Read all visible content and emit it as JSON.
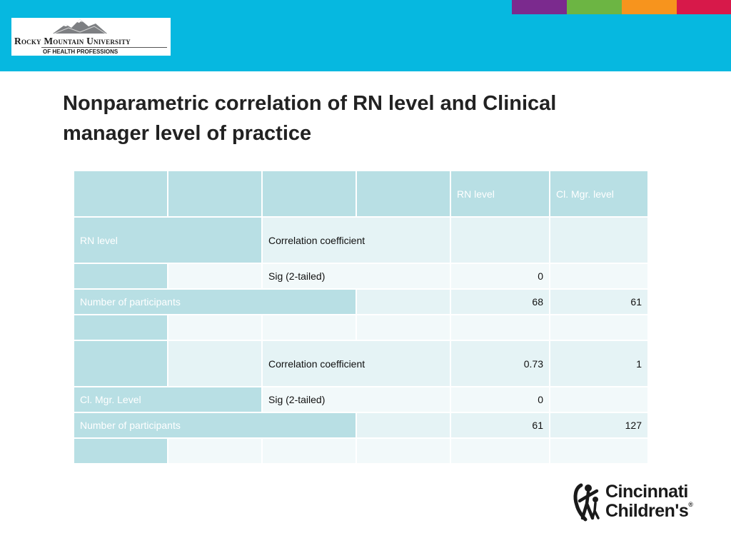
{
  "header": {
    "logo": {
      "line1": "Rocky Mountain University",
      "line2": "OF HEALTH PROFESSIONS"
    },
    "colors": {
      "band": "#06b8e0",
      "strip": [
        "#7b2a8e",
        "#6cb543",
        "#f7941d",
        "#d7194a"
      ]
    }
  },
  "slide": {
    "title_line1": "Nonparametric correlation of RN level and Clinical",
    "title_line2": "manager level of practice"
  },
  "table": {
    "header": {
      "col5": "RN level",
      "col6": "Cl. Mgr. level"
    },
    "rn_level": {
      "label": "RN level",
      "corr_label": "Correlation coefficient",
      "corr_rn": "",
      "corr_mgr": "",
      "sig_label": "Sig (2-tailed)",
      "sig_rn": "0",
      "sig_mgr": "",
      "n_label": "Number of participants",
      "n_rn": "68",
      "n_mgr": "61"
    },
    "mgr_level": {
      "label": "Cl. Mgr. Level",
      "corr_label": "Correlation coefficient",
      "corr_rn": "0.73",
      "corr_mgr": "1",
      "sig_label": "Sig (2-tailed)",
      "sig_rn": "0",
      "sig_mgr": "",
      "n_label": "Number of participants",
      "n_rn": "61",
      "n_mgr": "127"
    },
    "colors": {
      "dark": "#b8dfe4",
      "light": "#e5f3f5",
      "lighter": "#f2f9fa"
    }
  },
  "footer_logo": {
    "line1": "Cincinnati",
    "line2": "Children's",
    "mark": "®"
  }
}
